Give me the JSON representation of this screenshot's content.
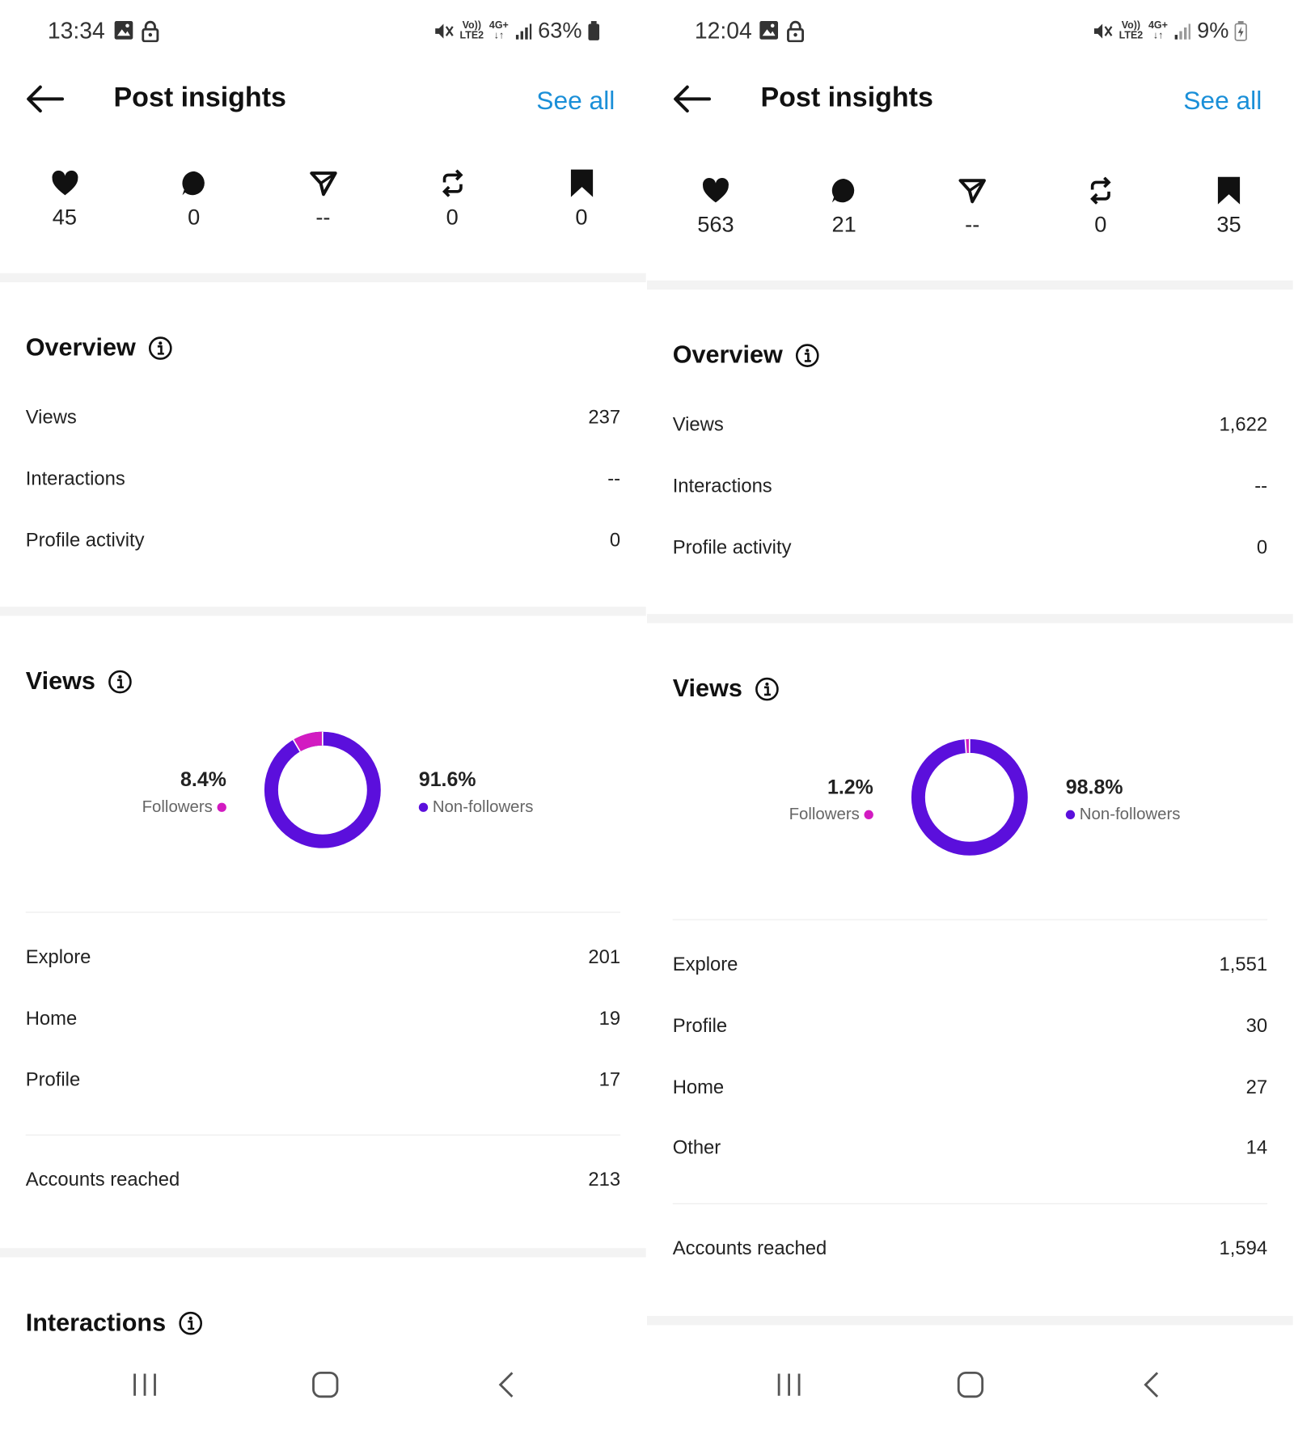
{
  "colors": {
    "accent": "#1a8fd8",
    "followers": "#d21bc1",
    "non_followers": "#5b0fdc"
  },
  "panels": [
    {
      "status": {
        "time": "13:34",
        "battery": "63%",
        "network": "4G+",
        "volte": "Vo))",
        "lte": "LTE2"
      },
      "header": {
        "title": "Post insights",
        "see_all": "See all"
      },
      "metrics": {
        "likes": "45",
        "comments": "0",
        "shares": "--",
        "reposts": "0",
        "saves": "0"
      },
      "overview": {
        "title": "Overview",
        "rows": [
          {
            "label": "Views",
            "value": "237"
          },
          {
            "label": "Interactions",
            "value": "--"
          },
          {
            "label": "Profile activity",
            "value": "0"
          }
        ]
      },
      "views": {
        "title": "Views",
        "followers_pct": "8.4%",
        "followers_label": "Followers",
        "followers_fraction": 0.084,
        "non_followers_pct": "91.6%",
        "non_followers_label": "Non-followers",
        "sources": [
          {
            "label": "Explore",
            "value": "201"
          },
          {
            "label": "Home",
            "value": "19"
          },
          {
            "label": "Profile",
            "value": "17"
          }
        ],
        "accounts_reached_label": "Accounts reached",
        "accounts_reached": "213"
      },
      "interactions_title": "Interactions"
    },
    {
      "status": {
        "time": "12:04",
        "battery": "9%",
        "network": "4G+",
        "volte": "Vo))",
        "lte": "LTE2"
      },
      "header": {
        "title": "Post insights",
        "see_all": "See all"
      },
      "metrics": {
        "likes": "563",
        "comments": "21",
        "shares": "--",
        "reposts": "0",
        "saves": "35"
      },
      "overview": {
        "title": "Overview",
        "rows": [
          {
            "label": "Views",
            "value": "1,622"
          },
          {
            "label": "Interactions",
            "value": "--"
          },
          {
            "label": "Profile activity",
            "value": "0"
          }
        ]
      },
      "views": {
        "title": "Views",
        "followers_pct": "1.2%",
        "followers_label": "Followers",
        "followers_fraction": 0.012,
        "non_followers_pct": "98.8%",
        "non_followers_label": "Non-followers",
        "sources": [
          {
            "label": "Explore",
            "value": "1,551"
          },
          {
            "label": "Profile",
            "value": "30"
          },
          {
            "label": "Home",
            "value": "27"
          },
          {
            "label": "Other",
            "value": "14"
          }
        ],
        "accounts_reached_label": "Accounts reached",
        "accounts_reached": "1,594"
      }
    }
  ]
}
